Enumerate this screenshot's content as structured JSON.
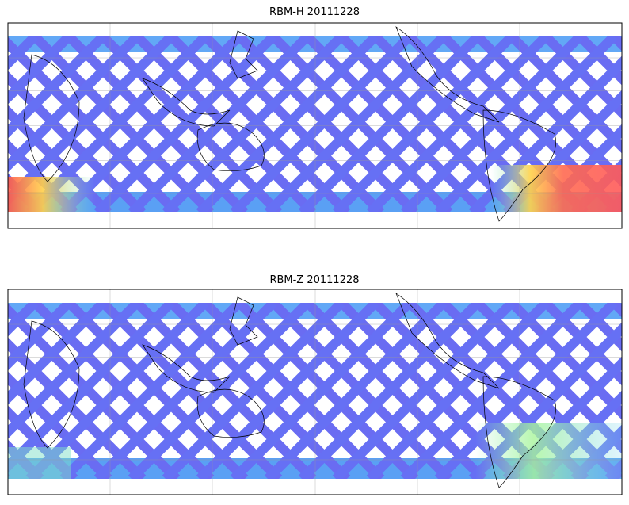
{
  "panels": [
    {
      "title": "RBM-H 20111228"
    },
    {
      "title": "RBM-Z 20111228"
    }
  ]
}
